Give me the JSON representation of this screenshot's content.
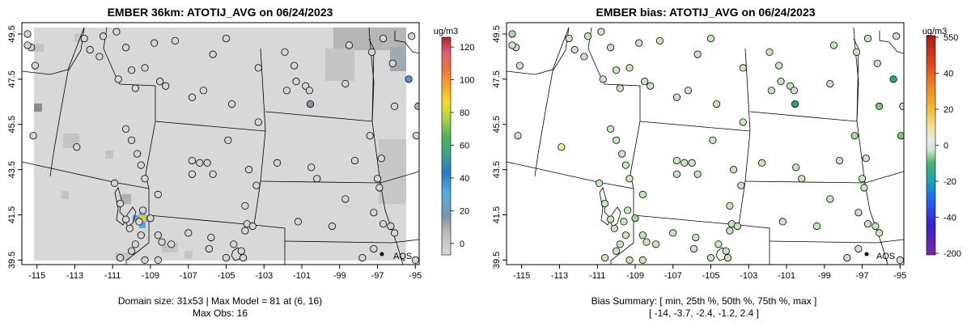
{
  "chart_data": [
    {
      "type": "heatmap",
      "title": "EMBER 36km: ATOTIJ_AVG on 06/24/2023",
      "x_ticks": [
        "-115",
        "-113",
        "-111",
        "-109",
        "-107",
        "-105",
        "-103",
        "-101",
        "-99",
        "-97",
        "-95"
      ],
      "y_ticks": [
        "39.5",
        "41.5",
        "43.5",
        "45.5",
        "47.5",
        "49.5"
      ],
      "xlim": [
        -115.8,
        -94.8
      ],
      "ylim": [
        39.3,
        50.0
      ],
      "colorbar": {
        "title": "ug/m3",
        "range": [
          -7,
          126
        ],
        "ticks": [
          "0",
          "20",
          "40",
          "60",
          "80",
          "100",
          "120"
        ],
        "tick_values": [
          0,
          20,
          40,
          60,
          80,
          100,
          120
        ]
      },
      "caption_lines": [
        "Domain size: 31x53 | Max Model = 81 at (6, 16)",
        "Max Obs: 16"
      ],
      "marker_label": "AQS",
      "marker_point": [
        -96.3,
        39.65
      ],
      "hotspot_cells": [
        {
          "lon": -109.05,
          "lat": 41.35,
          "value": 81
        },
        {
          "lon": -109.05,
          "lat": 41.65,
          "value": 38
        },
        {
          "lon": -109.05,
          "lat": 41.05,
          "value": 32
        },
        {
          "lon": -109.35,
          "lat": 41.35,
          "value": 25
        },
        {
          "lon": -108.75,
          "lat": 41.35,
          "value": 22
        },
        {
          "lon": -95.2,
          "lat": 47.3,
          "value": 30
        }
      ],
      "site_values": [
        {
          "lon": -100.55,
          "lat": 46.4,
          "value": 18
        },
        {
          "lon": -95.35,
          "lat": 47.5,
          "value": 28
        },
        {
          "lon": -94.85,
          "lat": 46.3,
          "value": 9
        }
      ],
      "grid": false,
      "legend_position": "right"
    },
    {
      "type": "scatter",
      "title": "EMBER bias: ATOTIJ_AVG on 06/24/2023",
      "x_ticks": [
        "-115",
        "-113",
        "-111",
        "-109",
        "-107",
        "-105",
        "-103",
        "-101",
        "-99",
        "-97",
        "-95"
      ],
      "y_ticks": [
        "39.5",
        "41.5",
        "43.5",
        "45.5",
        "47.5",
        "49.5"
      ],
      "xlim": [
        -115.8,
        -94.8
      ],
      "ylim": [
        39.3,
        50.0
      ],
      "colorbar": {
        "title": "ug/m3",
        "range": [
          -210,
          555
        ],
        "ticks": [
          "550",
          "40",
          "20",
          "0",
          "-20",
          "-40",
          "-200"
        ]
      },
      "caption_lines": [
        "Bias Summary: [ min, 25th %, 50th %, 75th %, max ]",
        "[ -14,   -3.7,   -2.4,   -1.2,   2.4 ]"
      ],
      "bias_summary": {
        "min": -14,
        "p25": -3.7,
        "p50": -2.4,
        "p75": -1.2,
        "max": 2.4
      },
      "marker_label": "AQS",
      "marker_point": [
        -96.3,
        39.65
      ],
      "site_biases": [
        {
          "lon": -100.55,
          "lat": 46.4,
          "value": -14
        },
        {
          "lon": -95.35,
          "lat": 47.5,
          "value": -12
        },
        {
          "lon": -95.0,
          "lat": 47.0,
          "value": -9
        },
        {
          "lon": -94.9,
          "lat": 46.0,
          "value": -6
        },
        {
          "lon": -94.95,
          "lat": 45.0,
          "value": -5
        },
        {
          "lon": -96.1,
          "lat": 46.3,
          "value": -5
        },
        {
          "lon": -97.4,
          "lat": 45.0,
          "value": -4
        },
        {
          "lon": -101.8,
          "lat": 46.9,
          "value": -6
        },
        {
          "lon": -103.4,
          "lat": 46.8,
          "value": -5
        },
        {
          "lon": -109.0,
          "lat": 41.35,
          "value": -3
        },
        {
          "lon": -115.5,
          "lat": 49.5,
          "value": -4
        },
        {
          "lon": -112.9,
          "lat": 44.5,
          "value": 2.4
        },
        {
          "lon": -110.8,
          "lat": 47.5,
          "value": 2
        }
      ],
      "grid": false,
      "legend_position": "right"
    }
  ]
}
